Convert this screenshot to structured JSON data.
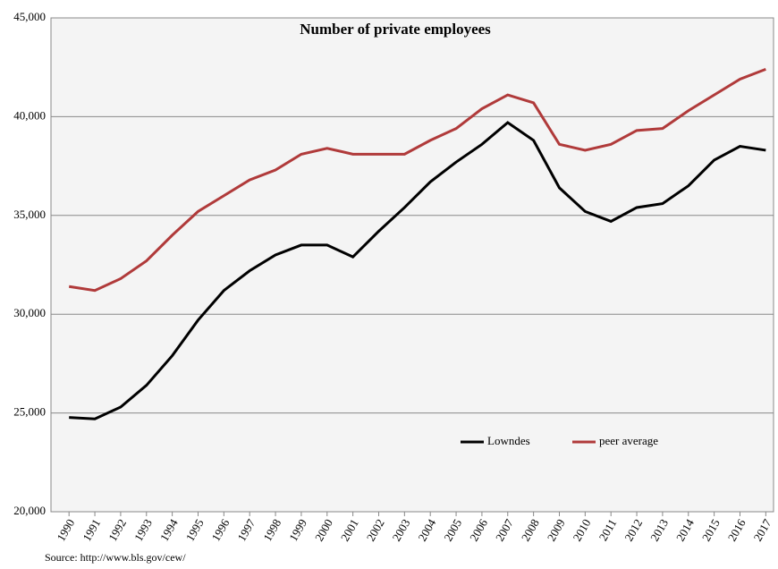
{
  "chart_data": {
    "type": "line",
    "title": "Number of private employees",
    "source": "Source: http://www.bls.gov/cew/",
    "categories": [
      "1990",
      "1991",
      "1992",
      "1993",
      "1994",
      "1995",
      "1996",
      "1997",
      "1998",
      "1999",
      "2000",
      "2001",
      "2002",
      "2003",
      "2004",
      "2005",
      "2006",
      "2007",
      "2008",
      "2009",
      "2010",
      "2011",
      "2012",
      "2013",
      "2014",
      "2015",
      "2016",
      "2017"
    ],
    "series": [
      {
        "name": "Lowndes",
        "color": "#000000",
        "values": [
          24770,
          24700,
          25300,
          26400,
          27900,
          29700,
          31200,
          32200,
          33000,
          33500,
          33500,
          32900,
          34200,
          35400,
          36700,
          37700,
          38600,
          39700,
          38800,
          36400,
          35200,
          34700,
          35400,
          35600,
          36500,
          37800,
          38500,
          38300
        ]
      },
      {
        "name": "peer average",
        "color": "#b03a3a",
        "values": [
          31400,
          31200,
          31800,
          32700,
          34000,
          35200,
          36000,
          36800,
          37300,
          38100,
          38400,
          38100,
          38100,
          38100,
          38800,
          39400,
          40400,
          41100,
          40700,
          38600,
          38300,
          38600,
          39300,
          39400,
          40300,
          41100,
          41900,
          42400
        ]
      }
    ],
    "ylim": [
      20000,
      45000
    ],
    "yticks": [
      {
        "value": 20000,
        "label": "20,000"
      },
      {
        "value": 25000,
        "label": "25,000"
      },
      {
        "value": 30000,
        "label": "30,000"
      },
      {
        "value": 35000,
        "label": "35,000"
      },
      {
        "value": 40000,
        "label": "40,000"
      },
      {
        "value": 45000,
        "label": "45,000"
      }
    ],
    "grid": true,
    "legend": "lower right"
  }
}
